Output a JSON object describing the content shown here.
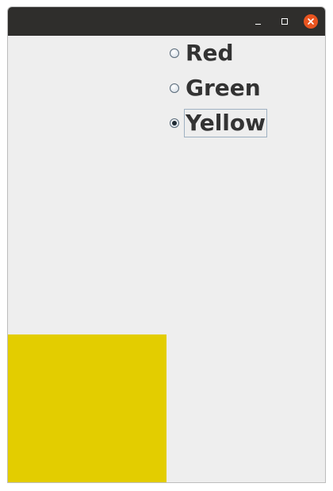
{
  "window": {
    "title": "",
    "controls": {
      "minimize_icon": "minimize-icon",
      "maximize_icon": "maximize-icon",
      "close_icon": "close-icon",
      "close_color": "#e9541f"
    }
  },
  "radios": [
    {
      "label": "Red",
      "selected": false
    },
    {
      "label": "Green",
      "selected": false
    },
    {
      "label": "Yellow",
      "selected": true
    }
  ],
  "swatch": {
    "color": "#e3cd00"
  }
}
